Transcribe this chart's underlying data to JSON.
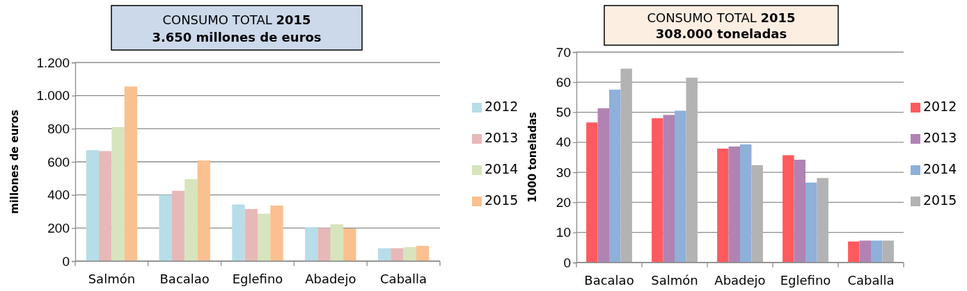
{
  "chart_data": [
    {
      "type": "bar",
      "title": "CONSUMO TOTAL 2015",
      "subtitle": "3.650 millones de euros",
      "ylabel": "millones de euros",
      "categories": [
        "Salmón",
        "Bacalao",
        "Eglefino",
        "Abadejo",
        "Caballa"
      ],
      "series": [
        {
          "name": "2012",
          "color": "#b7dde8",
          "values": [
            670,
            400,
            342,
            205,
            78
          ]
        },
        {
          "name": "2013",
          "color": "#e6b9b8",
          "values": [
            665,
            425,
            315,
            200,
            78
          ]
        },
        {
          "name": "2014",
          "color": "#d7e4bd",
          "values": [
            810,
            495,
            287,
            223,
            85
          ]
        },
        {
          "name": "2015",
          "color": "#fac090",
          "values": [
            1055,
            608,
            336,
            197,
            92
          ]
        }
      ],
      "ylim": [
        0,
        1200
      ],
      "yticks": [
        0,
        200,
        400,
        600,
        800,
        {
          "value": 1000,
          "label": "1.000"
        },
        {
          "value": 1200,
          "label": "1.200"
        }
      ],
      "grid": "y",
      "legend": "right"
    },
    {
      "type": "bar",
      "title": "CONSUMO TOTAL 2015",
      "subtitle": "308.000 toneladas",
      "ylabel": "1000 toneladas",
      "categories": [
        "Bacalao",
        "Salmón",
        "Abadejo",
        "Eglefino",
        "Caballa"
      ],
      "series": [
        {
          "name": "2012",
          "color": "#ff5a5f",
          "values": [
            46.6,
            48,
            37.9,
            35.7,
            7
          ]
        },
        {
          "name": "2013",
          "color": "#b083b3",
          "values": [
            51.3,
            49.1,
            38.6,
            34.2,
            7.3
          ]
        },
        {
          "name": "2014",
          "color": "#8eb0d9",
          "values": [
            57.5,
            50.5,
            39.3,
            26.6,
            7.3
          ]
        },
        {
          "name": "2015",
          "color": "#b3b3b3",
          "values": [
            64.5,
            61.5,
            32.4,
            28.1,
            7.3
          ]
        }
      ],
      "ylim": [
        0,
        70
      ],
      "yticks": [
        0,
        10,
        20,
        30,
        40,
        50,
        60,
        70
      ],
      "grid": "y",
      "legend": "right"
    }
  ]
}
